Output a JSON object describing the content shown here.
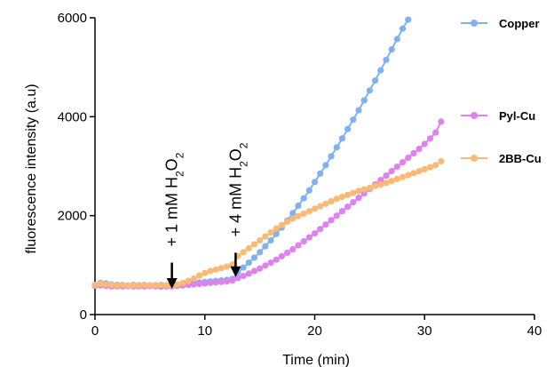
{
  "chart_data": {
    "type": "scatter",
    "xlabel": "Time (min)",
    "ylabel": "fluorescence intensity (a.u)",
    "xlim": [
      0,
      40
    ],
    "ylim": [
      0,
      6000
    ],
    "xticks": [
      0,
      10,
      20,
      30,
      40
    ],
    "yticks": [
      0,
      2000,
      4000,
      6000
    ],
    "grid": false,
    "legend_placement": "right",
    "annotations": [
      {
        "text_parts": [
          "+ 1 mM H",
          "2",
          "O",
          "2"
        ],
        "x": 7,
        "arrow_from_y": 1050,
        "arrow_to_y": 520
      },
      {
        "text_parts": [
          "+ 4 mM H",
          "2",
          "O",
          "2"
        ],
        "x": 12.8,
        "arrow_from_y": 1250,
        "arrow_to_y": 760
      }
    ],
    "series": [
      {
        "name": "Copper",
        "color": "#7fb2ef",
        "points": [
          [
            0,
            600
          ],
          [
            0.5,
            640
          ],
          [
            1,
            630
          ],
          [
            1.5,
            610
          ],
          [
            2,
            600
          ],
          [
            2.5,
            600
          ],
          [
            3,
            590
          ],
          [
            3.5,
            600
          ],
          [
            4,
            595
          ],
          [
            4.5,
            600
          ],
          [
            5,
            590
          ],
          [
            5.5,
            595
          ],
          [
            6,
            600
          ],
          [
            6.5,
            590
          ],
          [
            7,
            600
          ],
          [
            7.5,
            600
          ],
          [
            8,
            610
          ],
          [
            8.5,
            630
          ],
          [
            9,
            640
          ],
          [
            9.5,
            650
          ],
          [
            10,
            660
          ],
          [
            10.5,
            670
          ],
          [
            11,
            680
          ],
          [
            11.5,
            690
          ],
          [
            12,
            700
          ],
          [
            12.5,
            720
          ],
          [
            13,
            850
          ],
          [
            13.5,
            950
          ],
          [
            14,
            1050
          ],
          [
            14.5,
            1150
          ],
          [
            15,
            1260
          ],
          [
            15.5,
            1380
          ],
          [
            16,
            1500
          ],
          [
            16.5,
            1630
          ],
          [
            17,
            1760
          ],
          [
            17.5,
            1900
          ],
          [
            18,
            2050
          ],
          [
            18.5,
            2200
          ],
          [
            19,
            2350
          ],
          [
            19.5,
            2510
          ],
          [
            20,
            2680
          ],
          [
            20.5,
            2850
          ],
          [
            21,
            3020
          ],
          [
            21.5,
            3200
          ],
          [
            22,
            3380
          ],
          [
            22.5,
            3560
          ],
          [
            23,
            3750
          ],
          [
            23.5,
            3940
          ],
          [
            24,
            4130
          ],
          [
            24.5,
            4330
          ],
          [
            25,
            4530
          ],
          [
            25.5,
            4730
          ],
          [
            26,
            4940
          ],
          [
            26.5,
            5150
          ],
          [
            27,
            5360
          ],
          [
            27.5,
            5570
          ],
          [
            28,
            5780
          ],
          [
            28.5,
            5960
          ]
        ]
      },
      {
        "name": "Pyl-Cu",
        "color": "#dd82ee",
        "points": [
          [
            0,
            580
          ],
          [
            0.5,
            590
          ],
          [
            1,
            580
          ],
          [
            1.5,
            570
          ],
          [
            2,
            570
          ],
          [
            2.5,
            570
          ],
          [
            3,
            575
          ],
          [
            3.5,
            570
          ],
          [
            4,
            570
          ],
          [
            4.5,
            570
          ],
          [
            5,
            575
          ],
          [
            5.5,
            570
          ],
          [
            6,
            565
          ],
          [
            6.5,
            570
          ],
          [
            7,
            570
          ],
          [
            7.5,
            580
          ],
          [
            8,
            590
          ],
          [
            8.5,
            600
          ],
          [
            9,
            610
          ],
          [
            9.5,
            620
          ],
          [
            10,
            630
          ],
          [
            10.5,
            640
          ],
          [
            11,
            650
          ],
          [
            11.5,
            660
          ],
          [
            12,
            670
          ],
          [
            12.5,
            690
          ],
          [
            13,
            740
          ],
          [
            13.5,
            780
          ],
          [
            14,
            830
          ],
          [
            14.5,
            880
          ],
          [
            15,
            930
          ],
          [
            15.5,
            990
          ],
          [
            16,
            1050
          ],
          [
            16.5,
            1110
          ],
          [
            17,
            1180
          ],
          [
            17.5,
            1250
          ],
          [
            18,
            1320
          ],
          [
            18.5,
            1400
          ],
          [
            19,
            1480
          ],
          [
            19.5,
            1560
          ],
          [
            20,
            1640
          ],
          [
            20.5,
            1730
          ],
          [
            21,
            1820
          ],
          [
            21.5,
            1910
          ],
          [
            22,
            2000
          ],
          [
            22.5,
            2090
          ],
          [
            23,
            2180
          ],
          [
            23.5,
            2270
          ],
          [
            24,
            2360
          ],
          [
            24.5,
            2450
          ],
          [
            25,
            2540
          ],
          [
            25.5,
            2630
          ],
          [
            26,
            2720
          ],
          [
            26.5,
            2810
          ],
          [
            27,
            2900
          ],
          [
            27.5,
            2990
          ],
          [
            28,
            3080
          ],
          [
            28.5,
            3170
          ],
          [
            29,
            3260
          ],
          [
            29.5,
            3350
          ],
          [
            30,
            3450
          ],
          [
            30.5,
            3560
          ],
          [
            31,
            3680
          ],
          [
            31.5,
            3900
          ]
        ]
      },
      {
        "name": "2BB-Cu",
        "color": "#fbb976",
        "points": [
          [
            0,
            600
          ],
          [
            0.5,
            620
          ],
          [
            1,
            610
          ],
          [
            1.5,
            600
          ],
          [
            2,
            590
          ],
          [
            2.5,
            600
          ],
          [
            3,
            590
          ],
          [
            3.5,
            590
          ],
          [
            4,
            590
          ],
          [
            4.5,
            595
          ],
          [
            5,
            590
          ],
          [
            5.5,
            590
          ],
          [
            6,
            595
          ],
          [
            6.5,
            590
          ],
          [
            7,
            590
          ],
          [
            7.5,
            610
          ],
          [
            8,
            640
          ],
          [
            8.5,
            680
          ],
          [
            9,
            730
          ],
          [
            9.5,
            790
          ],
          [
            10,
            840
          ],
          [
            10.5,
            880
          ],
          [
            11,
            910
          ],
          [
            11.5,
            940
          ],
          [
            12,
            970
          ],
          [
            12.5,
            1010
          ],
          [
            13,
            1180
          ],
          [
            13.5,
            1260
          ],
          [
            14,
            1340
          ],
          [
            14.5,
            1420
          ],
          [
            15,
            1500
          ],
          [
            15.5,
            1580
          ],
          [
            16,
            1660
          ],
          [
            16.5,
            1740
          ],
          [
            17,
            1810
          ],
          [
            17.5,
            1880
          ],
          [
            18,
            1940
          ],
          [
            18.5,
            1990
          ],
          [
            19,
            2040
          ],
          [
            19.5,
            2090
          ],
          [
            20,
            2140
          ],
          [
            20.5,
            2190
          ],
          [
            21,
            2240
          ],
          [
            21.5,
            2290
          ],
          [
            22,
            2340
          ],
          [
            22.5,
            2380
          ],
          [
            23,
            2420
          ],
          [
            23.5,
            2460
          ],
          [
            24,
            2500
          ],
          [
            24.5,
            2530
          ],
          [
            25,
            2560
          ],
          [
            25.5,
            2600
          ],
          [
            26,
            2630
          ],
          [
            26.5,
            2660
          ],
          [
            27,
            2700
          ],
          [
            27.5,
            2740
          ],
          [
            28,
            2780
          ],
          [
            28.5,
            2820
          ],
          [
            29,
            2860
          ],
          [
            29.5,
            2900
          ],
          [
            30,
            2940
          ],
          [
            30.5,
            2980
          ],
          [
            31,
            3020
          ],
          [
            31.5,
            3100
          ]
        ]
      }
    ]
  }
}
